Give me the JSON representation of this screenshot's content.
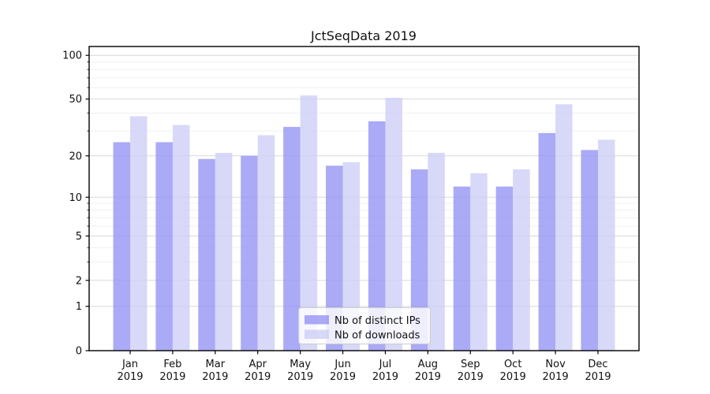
{
  "chart_data": {
    "type": "bar",
    "title": "JctSeqData 2019",
    "categories": [
      "Jan 2019",
      "Feb 2019",
      "Mar 2019",
      "Apr 2019",
      "May 2019",
      "Jun 2019",
      "Jul 2019",
      "Aug 2019",
      "Sep 2019",
      "Oct 2019",
      "Nov 2019",
      "Dec 2019"
    ],
    "series": [
      {
        "name": "Nb of distinct IPs",
        "color": "#9292f4",
        "values": [
          25,
          25,
          19,
          20,
          32,
          17,
          35,
          16,
          12,
          12,
          29,
          22
        ]
      },
      {
        "name": "Nb of downloads",
        "color": "#cdcdf6",
        "values": [
          38,
          33,
          21,
          28,
          53,
          18,
          51,
          21,
          15,
          16,
          46,
          26
        ]
      }
    ],
    "bar_alpha": 0.78,
    "yscale": "log10(1+x)",
    "ylim": [
      0,
      115
    ],
    "yticks": [
      0,
      1,
      2,
      5,
      10,
      20,
      50,
      100
    ],
    "minor_yticks": [
      3,
      4,
      6,
      7,
      8,
      9,
      30,
      40,
      60,
      70,
      80,
      90
    ],
    "xlabel": "",
    "ylabel": "",
    "grid": "major and minor horizontal gridlines",
    "legend_position": "lower center",
    "colors": {
      "grid_major": "#d9d9d9",
      "grid_minor": "#f0f0f0",
      "axis": "#000000",
      "text": "#111111",
      "legend_border": "#cccccc",
      "legend_background": "rgba(255,255,255,0.8)",
      "figure_background": "#ffffff"
    }
  }
}
